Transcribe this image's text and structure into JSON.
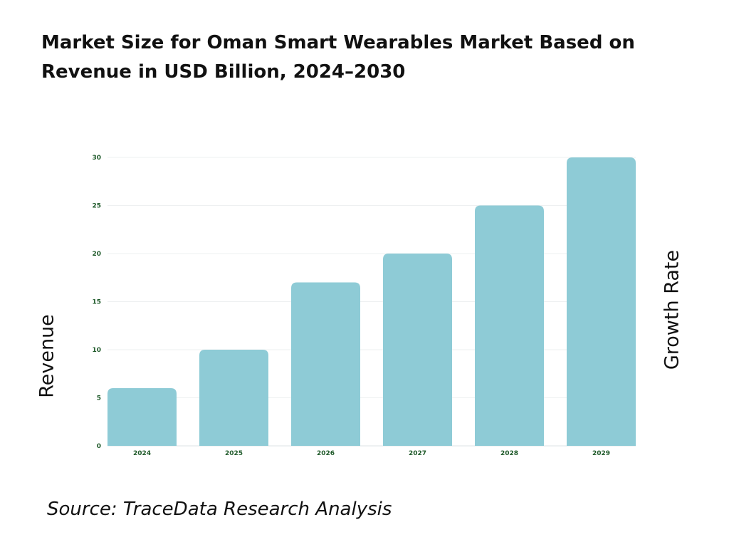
{
  "chart_data": {
    "type": "bar",
    "title": "Market Size for Oman Smart Wearables Market Based on Revenue in USD Billion, 2024–2030",
    "categories": [
      "2024",
      "2025",
      "2026",
      "2027",
      "2028",
      "2029"
    ],
    "values": [
      6,
      10,
      17,
      20,
      25,
      30
    ],
    "ylabel": "Revenue",
    "y2label": "Growth Rate",
    "xlabel": "",
    "ylim": [
      0,
      30
    ],
    "yticks": [
      0,
      5,
      10,
      15,
      20,
      25,
      30
    ],
    "grid": true,
    "bar_color": "#8ecbd6",
    "tick_color": "#1f5a2a"
  },
  "source": "Source: TraceData Research Analysis"
}
